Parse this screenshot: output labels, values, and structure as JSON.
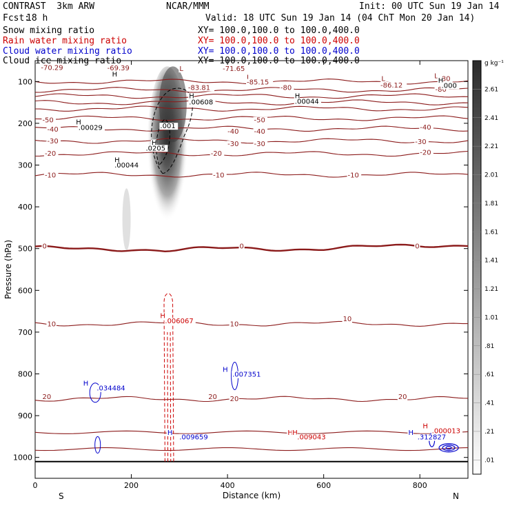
{
  "header": {
    "model": "CONTRAST  3km ARW",
    "center": "NCAR/MMM",
    "init": "Init: 00 UTC Sun 19 Jan 14",
    "fcst_label": "Fcst:",
    "fcst_value": "18 h",
    "valid": "Valid: 18 UTC Sun 19 Jan 14 (04 ChT Mon 20 Jan 14)"
  },
  "fields": [
    {
      "name": "Snow mixing ratio",
      "xy": "XY= 100.0,100.0 to 100.0,400.0",
      "color": "#000000"
    },
    {
      "name": "Rain water mixing ratio",
      "xy": "XY= 100.0,100.0 to 100.0,400.0",
      "color": "#cc0000"
    },
    {
      "name": "Cloud water mixing ratio",
      "xy": "XY= 100.0,100.0 to 100.0,400.0",
      "color": "#0000cc"
    },
    {
      "name": "Cloud ice mixing ratio",
      "xy": "XY= 100.0,100.0 to 100.0,400.0",
      "color": "#000000"
    }
  ],
  "chart_data": {
    "type": "cross-section contour",
    "xlabel": "Distance (km)",
    "ylabel": "Pressure (hPa)",
    "xlim": [
      0,
      900
    ],
    "ylim": [
      1050,
      50
    ],
    "xticks": [
      "0",
      "200",
      "400",
      "600",
      "800"
    ],
    "yticks": [
      "100",
      "200",
      "300",
      "400",
      "500",
      "600",
      "700",
      "800",
      "900",
      "1000"
    ],
    "x_end_labels": [
      "S",
      "N"
    ],
    "colorbar": {
      "unit": "g kg⁻¹",
      "levels": [
        "2.61",
        "2.41",
        "2.21",
        "2.01",
        "1.81",
        "1.61",
        "1.41",
        "1.21",
        "1.01",
        ".81",
        ".61",
        ".41",
        ".21",
        ".01"
      ]
    },
    "snow_max": {
      "x": 275,
      "p": 270,
      "peak": 2.6
    },
    "temperature_contours": [
      {
        "value": -80,
        "points": [
          [
            0,
            100
          ],
          [
            900,
            100
          ]
        ]
      },
      {
        "value": -80,
        "points": [
          [
            0,
            120
          ],
          [
            900,
            120
          ]
        ]
      },
      {
        "value": -70,
        "points": [
          [
            0,
            135
          ],
          [
            900,
            135
          ]
        ]
      },
      {
        "value": -70,
        "points": [
          [
            0,
            150
          ],
          [
            900,
            150
          ]
        ]
      },
      {
        "value": -60,
        "points": [
          [
            0,
            165
          ],
          [
            900,
            165
          ]
        ]
      },
      {
        "value": -50,
        "points": [
          [
            0,
            188
          ],
          [
            900,
            188
          ]
        ]
      },
      {
        "value": -40,
        "points": [
          [
            0,
            213
          ],
          [
            900,
            213
          ]
        ]
      },
      {
        "value": -30,
        "points": [
          [
            0,
            242
          ],
          [
            900,
            242
          ]
        ]
      },
      {
        "value": -20,
        "points": [
          [
            0,
            273
          ],
          [
            900,
            273
          ]
        ]
      },
      {
        "value": -10,
        "points": [
          [
            0,
            323
          ],
          [
            900,
            323
          ]
        ]
      },
      {
        "value": 0,
        "points": [
          [
            0,
            500
          ],
          [
            200,
            500
          ],
          [
            270,
            505
          ],
          [
            400,
            500
          ],
          [
            600,
            500
          ],
          [
            900,
            490
          ]
        ]
      },
      {
        "value": 10,
        "points": [
          [
            0,
            680
          ],
          [
            900,
            680
          ]
        ]
      },
      {
        "value": 20,
        "points": [
          [
            0,
            860
          ],
          [
            900,
            860
          ]
        ]
      }
    ],
    "contour_labels": [
      {
        "x": 12,
        "p": 72,
        "text": "-70.29"
      },
      {
        "x": 150,
        "p": 73,
        "text": "-69.39"
      },
      {
        "x": 300,
        "p": 75,
        "text": "L"
      },
      {
        "x": 390,
        "p": 75,
        "text": "-71.65"
      },
      {
        "x": 440,
        "p": 95,
        "text": "L"
      },
      {
        "x": 440,
        "p": 107,
        "text": "-85.15"
      },
      {
        "x": 318,
        "p": 120,
        "text": "-83.81"
      },
      {
        "x": 510,
        "p": 120,
        "text": "-80"
      },
      {
        "x": 720,
        "p": 99,
        "text": "L"
      },
      {
        "x": 718,
        "p": 114,
        "text": "-86.12"
      },
      {
        "x": 840,
        "p": 99,
        "text": "-80"
      },
      {
        "x": 832,
        "p": 124,
        "text": "-80"
      },
      {
        "x": 830,
        "p": 92,
        "text": "L"
      },
      {
        "x": 15,
        "p": 198,
        "text": "-50"
      },
      {
        "x": 455,
        "p": 198,
        "text": "-50"
      },
      {
        "x": 25,
        "p": 220,
        "text": "-40"
      },
      {
        "x": 400,
        "p": 225,
        "text": "-40"
      },
      {
        "x": 455,
        "p": 225,
        "text": "-40"
      },
      {
        "x": 800,
        "p": 215,
        "text": "-40"
      },
      {
        "x": 25,
        "p": 248,
        "text": "-30"
      },
      {
        "x": 400,
        "p": 255,
        "text": "-30"
      },
      {
        "x": 455,
        "p": 255,
        "text": "-30"
      },
      {
        "x": 790,
        "p": 250,
        "text": "-30"
      },
      {
        "x": 20,
        "p": 278,
        "text": "-20"
      },
      {
        "x": 365,
        "p": 278,
        "text": "-20"
      },
      {
        "x": 800,
        "p": 275,
        "text": "-20"
      },
      {
        "x": 20,
        "p": 330,
        "text": "-10"
      },
      {
        "x": 370,
        "p": 330,
        "text": "-10"
      },
      {
        "x": 650,
        "p": 330,
        "text": "-10"
      },
      {
        "x": 15,
        "p": 500,
        "text": "0"
      },
      {
        "x": 425,
        "p": 500,
        "text": "0"
      },
      {
        "x": 790,
        "p": 500,
        "text": "0"
      },
      {
        "x": 25,
        "p": 686,
        "text": "10"
      },
      {
        "x": 405,
        "p": 686,
        "text": "10"
      },
      {
        "x": 640,
        "p": 674,
        "text": "10"
      },
      {
        "x": 15,
        "p": 860,
        "text": "20"
      },
      {
        "x": 360,
        "p": 860,
        "text": "20"
      },
      {
        "x": 405,
        "p": 865,
        "text": "20"
      },
      {
        "x": 755,
        "p": 860,
        "text": "20"
      }
    ],
    "maxima_labels": [
      {
        "x": 160,
        "p": 88,
        "text": "H",
        "color": "#000000"
      },
      {
        "x": 320,
        "p": 140,
        "text": "H",
        "color": "#000000"
      },
      {
        "x": 320,
        "p": 155,
        "text": ".00608",
        "color": "#000000"
      },
      {
        "x": 540,
        "p": 140,
        "text": "H",
        "color": "#000000"
      },
      {
        "x": 540,
        "p": 153,
        "text": ".00044",
        "color": "#000000"
      },
      {
        "x": 85,
        "p": 203,
        "text": "H",
        "color": "#000000"
      },
      {
        "x": 90,
        "p": 216,
        "text": ".00029",
        "color": "#000000"
      },
      {
        "x": 260,
        "p": 212,
        "text": ".001",
        "color": "#000000"
      },
      {
        "x": 242,
        "p": 252,
        "text": "H",
        "color": "#000000"
      },
      {
        "x": 230,
        "p": 265,
        "text": ".0205",
        "color": "#000000"
      },
      {
        "x": 165,
        "p": 293,
        "text": "H",
        "color": "#000000"
      },
      {
        "x": 165,
        "p": 306,
        "text": ".00044",
        "color": "#000000"
      },
      {
        "x": 838,
        "p": 103,
        "text": "H",
        "color": "#000000"
      },
      {
        "x": 845,
        "p": 115,
        "text": ".000",
        "color": "#000000"
      },
      {
        "x": 260,
        "p": 666,
        "text": "H",
        "color": "#cc0000"
      },
      {
        "x": 270,
        "p": 679,
        "text": ".006067",
        "color": "#cc0000"
      },
      {
        "x": 525,
        "p": 946,
        "text": "H",
        "color": "#cc0000"
      },
      {
        "x": 535,
        "p": 946,
        "text": "H",
        "color": "#cc0000"
      },
      {
        "x": 545,
        "p": 957,
        "text": ".009043",
        "color": "#cc0000"
      },
      {
        "x": 806,
        "p": 930,
        "text": "H",
        "color": "#cc0000"
      },
      {
        "x": 825,
        "p": 942,
        "text": ".000013",
        "color": "#cc0000"
      },
      {
        "x": 100,
        "p": 828,
        "text": "H",
        "color": "#0000cc"
      },
      {
        "x": 128,
        "p": 840,
        "text": ".034484",
        "color": "#0000cc"
      },
      {
        "x": 390,
        "p": 795,
        "text": "H",
        "color": "#0000cc"
      },
      {
        "x": 410,
        "p": 807,
        "text": ".007351",
        "color": "#0000cc"
      },
      {
        "x": 275,
        "p": 946,
        "text": "H",
        "color": "#0000cc"
      },
      {
        "x": 300,
        "p": 957,
        "text": ".009659",
        "color": "#0000cc"
      },
      {
        "x": 776,
        "p": 946,
        "text": "H",
        "color": "#0000cc"
      },
      {
        "x": 795,
        "p": 957,
        "text": ".312827",
        "color": "#0000cc"
      }
    ]
  }
}
